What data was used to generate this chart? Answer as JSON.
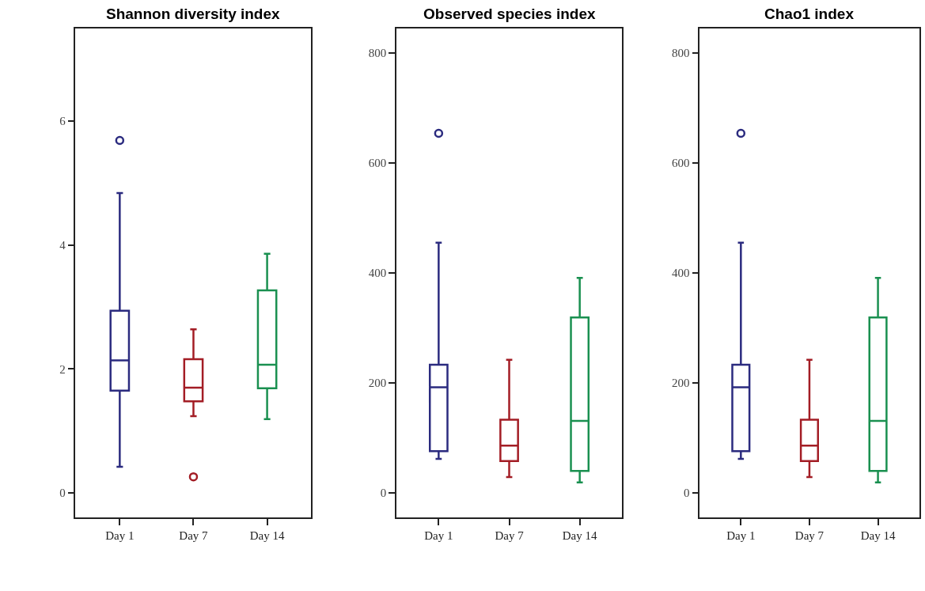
{
  "chart_data": [
    {
      "type": "box",
      "title": "Shannon diversity index",
      "categories": [
        "Day 1",
        "Day 7",
        "Day 14"
      ],
      "colors": [
        "#2b2b7f",
        "#a31d25",
        "#1a9050"
      ],
      "ylim": [
        -0.4,
        7.5
      ],
      "yticks": [
        0,
        2,
        4,
        6
      ],
      "boxes": [
        {
          "low": 0.42,
          "q1": 1.65,
          "median": 2.14,
          "q3": 2.94,
          "high": 4.84,
          "outliers": [
            5.69
          ]
        },
        {
          "low": 1.24,
          "q1": 1.48,
          "median": 1.7,
          "q3": 2.16,
          "high": 2.64,
          "outliers": [
            0.26
          ]
        },
        {
          "low": 1.19,
          "q1": 1.69,
          "median": 2.07,
          "q3": 3.27,
          "high": 3.86
        }
      ]
    },
    {
      "type": "box",
      "title": "Observed species index",
      "categories": [
        "Day 1",
        "Day 7",
        "Day 14"
      ],
      "colors": [
        "#2b2b7f",
        "#a31d25",
        "#1a9050"
      ],
      "ylim": [
        -45,
        845
      ],
      "yticks": [
        0,
        200,
        400,
        600,
        800
      ],
      "boxes": [
        {
          "low": 62,
          "q1": 76,
          "median": 192,
          "q3": 233,
          "high": 455,
          "outliers": [
            654
          ]
        },
        {
          "low": 29,
          "q1": 58,
          "median": 86,
          "q3": 133,
          "high": 242
        },
        {
          "low": 19,
          "q1": 40,
          "median": 131,
          "q3": 319,
          "high": 391
        }
      ]
    },
    {
      "type": "box",
      "title": "Chao1 index",
      "categories": [
        "Day 1",
        "Day 7",
        "Day 14"
      ],
      "colors": [
        "#2b2b7f",
        "#a31d25",
        "#1a9050"
      ],
      "ylim": [
        -45,
        845
      ],
      "yticks": [
        0,
        200,
        400,
        600,
        800
      ],
      "boxes": [
        {
          "low": 62,
          "q1": 76,
          "median": 192,
          "q3": 233,
          "high": 455,
          "outliers": [
            654
          ]
        },
        {
          "low": 29,
          "q1": 58,
          "median": 86,
          "q3": 133,
          "high": 242
        },
        {
          "low": 19,
          "q1": 40,
          "median": 131,
          "q3": 319,
          "high": 391
        }
      ]
    }
  ]
}
